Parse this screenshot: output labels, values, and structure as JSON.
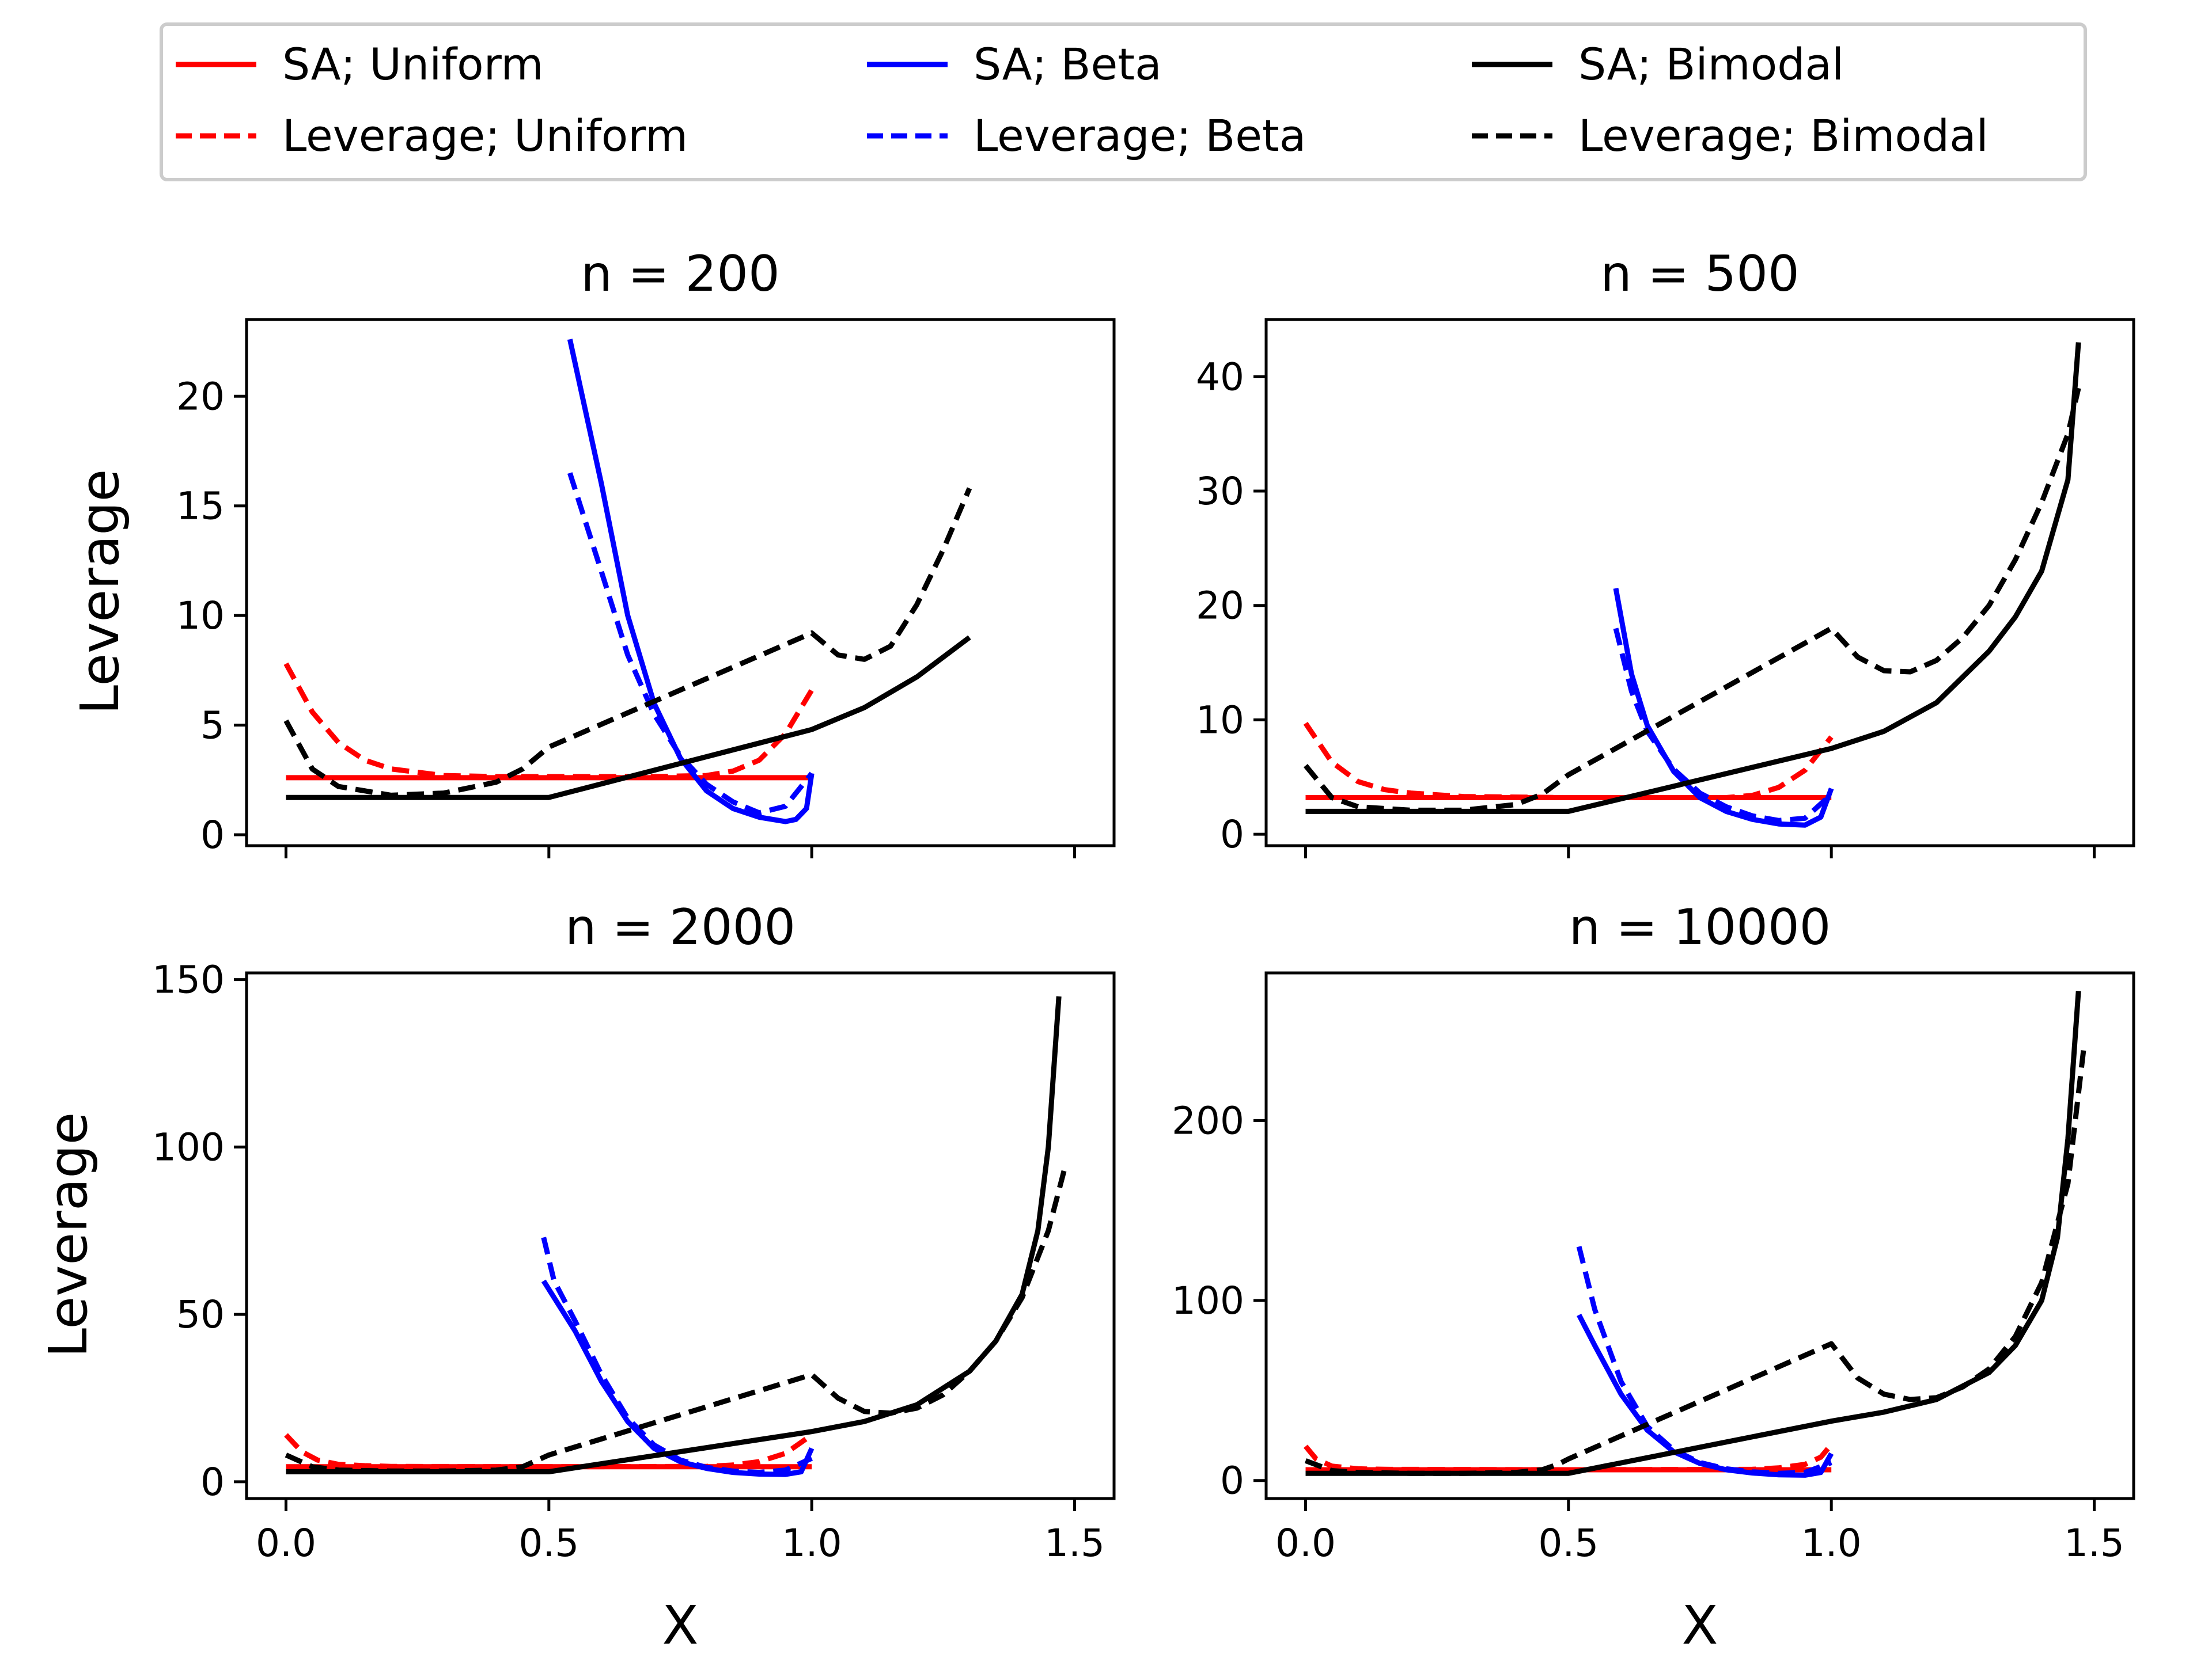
{
  "chart_data": {
    "type": "line",
    "legend": {
      "placement": "top-center",
      "entries": [
        {
          "label": "SA; Uniform",
          "color": "#ff0000",
          "dash": false
        },
        {
          "label": "SA; Beta",
          "color": "#0000ff",
          "dash": false
        },
        {
          "label": "SA; Bimodal",
          "color": "#000000",
          "dash": false
        },
        {
          "label": "Leverage; Uniform",
          "color": "#ff0000",
          "dash": true
        },
        {
          "label": "Leverage; Beta",
          "color": "#0000ff",
          "dash": true
        },
        {
          "label": "Leverage; Bimodal",
          "color": "#000000",
          "dash": true
        }
      ]
    },
    "xlabel": "X",
    "ylabel": "Leverage",
    "panels": [
      {
        "title": "n = 200",
        "xlim": [
          -0.075,
          1.575
        ],
        "ylim": [
          -0.5,
          23.5
        ],
        "xticks": [
          0.0,
          0.5,
          1.0,
          1.5
        ],
        "xtick_labels": [],
        "yticks": [
          0,
          5,
          10,
          15,
          20
        ],
        "ytick_labels": [
          "0",
          "5",
          "10",
          "15",
          "20"
        ],
        "series": [
          {
            "name": "SA; Uniform",
            "color": "#ff0000",
            "dash": false,
            "x": [
              0.0,
              1.0
            ],
            "y": [
              2.6,
              2.6
            ]
          },
          {
            "name": "Leverage; Uniform",
            "color": "#ff0000",
            "dash": true,
            "x": [
              0.0,
              0.05,
              0.1,
              0.15,
              0.2,
              0.3,
              0.4,
              0.5,
              0.6,
              0.7,
              0.8,
              0.85,
              0.9,
              0.95,
              1.0
            ],
            "y": [
              7.8,
              5.6,
              4.2,
              3.4,
              3.0,
              2.7,
              2.65,
              2.65,
              2.65,
              2.65,
              2.7,
              2.9,
              3.4,
              4.6,
              6.6
            ]
          },
          {
            "name": "SA; Beta",
            "color": "#0000ff",
            "dash": false,
            "x": [
              0.54,
              0.6,
              0.65,
              0.7,
              0.75,
              0.8,
              0.85,
              0.9,
              0.95,
              0.97,
              0.99,
              1.0
            ],
            "y": [
              22.6,
              16.0,
              10.0,
              6.0,
              3.5,
              2.0,
              1.2,
              0.8,
              0.6,
              0.7,
              1.2,
              2.8
            ]
          },
          {
            "name": "Leverage; Beta",
            "color": "#0000ff",
            "dash": true,
            "x": [
              0.54,
              0.6,
              0.65,
              0.7,
              0.75,
              0.8,
              0.85,
              0.9,
              0.95,
              1.0
            ],
            "y": [
              16.5,
              12.0,
              8.2,
              5.5,
              3.6,
              2.3,
              1.5,
              1.0,
              1.3,
              2.8
            ]
          },
          {
            "name": "SA; Bimodal",
            "color": "#000000",
            "dash": false,
            "x": [
              0.0,
              0.5,
              1.0,
              1.1,
              1.2,
              1.3
            ],
            "y": [
              1.7,
              1.7,
              4.8,
              5.8,
              7.2,
              9.0
            ]
          },
          {
            "name": "Leverage; Bimodal",
            "color": "#000000",
            "dash": true,
            "x": [
              0.0,
              0.05,
              0.1,
              0.2,
              0.3,
              0.4,
              0.45,
              0.5,
              1.0,
              1.05,
              1.1,
              1.15,
              1.2,
              1.25,
              1.3
            ],
            "y": [
              5.2,
              3.0,
              2.2,
              1.8,
              1.9,
              2.4,
              3.0,
              4.0,
              9.2,
              8.2,
              8.0,
              8.6,
              10.5,
              13.0,
              15.8
            ]
          }
        ]
      },
      {
        "title": "n = 500",
        "xlim": [
          -0.075,
          1.575
        ],
        "ylim": [
          -1.0,
          45.0
        ],
        "xticks": [
          0.0,
          0.5,
          1.0,
          1.5
        ],
        "xtick_labels": [],
        "yticks": [
          0,
          10,
          20,
          30,
          40
        ],
        "ytick_labels": [
          "0",
          "10",
          "20",
          "30",
          "40"
        ],
        "series": [
          {
            "name": "SA; Uniform",
            "color": "#ff0000",
            "dash": false,
            "x": [
              0.0,
              1.0
            ],
            "y": [
              3.2,
              3.2
            ]
          },
          {
            "name": "Leverage; Uniform",
            "color": "#ff0000",
            "dash": true,
            "x": [
              0.0,
              0.05,
              0.1,
              0.15,
              0.2,
              0.3,
              0.5,
              0.7,
              0.8,
              0.85,
              0.9,
              0.95,
              1.0
            ],
            "y": [
              9.7,
              6.3,
              4.6,
              3.9,
              3.6,
              3.3,
              3.2,
              3.2,
              3.2,
              3.4,
              4.1,
              5.6,
              8.5
            ]
          },
          {
            "name": "SA; Beta",
            "color": "#0000ff",
            "dash": false,
            "x": [
              0.59,
              0.62,
              0.65,
              0.7,
              0.75,
              0.8,
              0.85,
              0.9,
              0.95,
              0.98,
              1.0
            ],
            "y": [
              21.5,
              14.0,
              9.5,
              5.5,
              3.2,
              2.0,
              1.3,
              0.9,
              0.8,
              1.5,
              4.0
            ]
          },
          {
            "name": "Leverage; Beta",
            "color": "#0000ff",
            "dash": true,
            "x": [
              0.59,
              0.62,
              0.65,
              0.7,
              0.75,
              0.8,
              0.85,
              0.9,
              0.95,
              1.0
            ],
            "y": [
              18.0,
              12.5,
              9.0,
              5.7,
              3.6,
              2.4,
              1.6,
              1.2,
              1.4,
              3.5
            ]
          },
          {
            "name": "SA; Bimodal",
            "color": "#000000",
            "dash": false,
            "x": [
              0.0,
              0.5,
              1.0,
              1.1,
              1.2,
              1.3,
              1.35,
              1.4,
              1.45,
              1.47
            ],
            "y": [
              2.0,
              2.0,
              7.5,
              9.0,
              11.5,
              16.0,
              19.0,
              23.0,
              31.0,
              43.0
            ]
          },
          {
            "name": "Leverage; Bimodal",
            "color": "#000000",
            "dash": true,
            "x": [
              0.0,
              0.05,
              0.1,
              0.2,
              0.3,
              0.4,
              0.45,
              0.5,
              1.0,
              1.05,
              1.1,
              1.15,
              1.2,
              1.25,
              1.3,
              1.35,
              1.4,
              1.45,
              1.47
            ],
            "y": [
              6.0,
              3.2,
              2.4,
              2.1,
              2.1,
              2.6,
              3.5,
              5.2,
              18.0,
              15.5,
              14.3,
              14.2,
              15.2,
              17.2,
              20.0,
              24.0,
              29.0,
              35.0,
              39.0
            ]
          }
        ]
      },
      {
        "title": "n = 2000",
        "xlim": [
          -0.075,
          1.575
        ],
        "ylim": [
          -5.0,
          152.0
        ],
        "xticks": [
          0.0,
          0.5,
          1.0,
          1.5
        ],
        "xtick_labels": [
          "0.0",
          "0.5",
          "1.0",
          "1.5"
        ],
        "yticks": [
          0,
          50,
          100,
          150
        ],
        "ytick_labels": [
          "0",
          "50",
          "100",
          "150"
        ],
        "series": [
          {
            "name": "SA; Uniform",
            "color": "#ff0000",
            "dash": false,
            "x": [
              0.0,
              1.0
            ],
            "y": [
              4.5,
              4.5
            ]
          },
          {
            "name": "Leverage; Uniform",
            "color": "#ff0000",
            "dash": true,
            "x": [
              0.0,
              0.03,
              0.06,
              0.1,
              0.15,
              0.2,
              0.5,
              0.8,
              0.85,
              0.9,
              0.95,
              1.0
            ],
            "y": [
              14.0,
              9.0,
              6.5,
              5.2,
              4.8,
              4.6,
              4.5,
              4.6,
              5.0,
              6.0,
              8.5,
              14.0
            ]
          },
          {
            "name": "SA; Beta",
            "color": "#0000ff",
            "dash": false,
            "x": [
              0.49,
              0.55,
              0.6,
              0.65,
              0.7,
              0.75,
              0.8,
              0.85,
              0.9,
              0.95,
              0.98,
              1.0
            ],
            "y": [
              60.0,
              45.0,
              30.0,
              18.0,
              10.0,
              6.0,
              4.0,
              2.8,
              2.3,
              2.2,
              3.0,
              10.0
            ]
          },
          {
            "name": "Leverage; Beta",
            "color": "#0000ff",
            "dash": true,
            "x": [
              0.49,
              0.51,
              0.55,
              0.6,
              0.65,
              0.7,
              0.75,
              0.8,
              0.85,
              0.9,
              0.95,
              1.0
            ],
            "y": [
              73.0,
              60.0,
              48.0,
              32.0,
              19.0,
              11.0,
              6.5,
              4.3,
              3.2,
              2.8,
              3.5,
              7.0
            ]
          },
          {
            "name": "SA; Bimodal",
            "color": "#000000",
            "dash": false,
            "x": [
              0.0,
              0.5,
              1.0,
              1.1,
              1.2,
              1.3,
              1.35,
              1.4,
              1.43,
              1.45,
              1.47
            ],
            "y": [
              3.0,
              3.0,
              15.0,
              18.0,
              23.0,
              33.0,
              42.0,
              56.0,
              75.0,
              100.0,
              145.0
            ]
          },
          {
            "name": "Leverage; Bimodal",
            "color": "#000000",
            "dash": true,
            "x": [
              0.0,
              0.05,
              0.1,
              0.2,
              0.3,
              0.4,
              0.45,
              0.5,
              1.0,
              1.05,
              1.1,
              1.15,
              1.2,
              1.25,
              1.3,
              1.35,
              1.4,
              1.45,
              1.48
            ],
            "y": [
              8.0,
              4.5,
              3.5,
              3.2,
              3.2,
              3.5,
              4.5,
              8.0,
              32.0,
              25.0,
              21.0,
              20.5,
              22.0,
              26.0,
              33.0,
              42.0,
              55.0,
              75.0,
              93.0
            ]
          }
        ]
      },
      {
        "title": "n = 10000",
        "xlim": [
          -0.075,
          1.575
        ],
        "ylim": [
          -10.0,
          282.0
        ],
        "xticks": [
          0.0,
          0.5,
          1.0,
          1.5
        ],
        "xtick_labels": [
          "0.0",
          "0.5",
          "1.0",
          "1.5"
        ],
        "yticks": [
          0,
          100,
          200
        ],
        "ytick_labels": [
          "0",
          "100",
          "200"
        ],
        "series": [
          {
            "name": "SA; Uniform",
            "color": "#ff0000",
            "dash": false,
            "x": [
              0.0,
              1.0
            ],
            "y": [
              6.0,
              6.0
            ]
          },
          {
            "name": "Leverage; Uniform",
            "color": "#ff0000",
            "dash": true,
            "x": [
              0.0,
              0.02,
              0.05,
              0.1,
              0.15,
              0.5,
              0.85,
              0.9,
              0.95,
              0.98,
              1.0
            ],
            "y": [
              19.0,
              12.0,
              8.0,
              6.5,
              6.2,
              6.0,
              6.2,
              7.0,
              9.0,
              13.0,
              20.0
            ]
          },
          {
            "name": "SA; Beta",
            "color": "#0000ff",
            "dash": false,
            "x": [
              0.52,
              0.55,
              0.6,
              0.65,
              0.7,
              0.75,
              0.8,
              0.85,
              0.9,
              0.95,
              0.98,
              1.0
            ],
            "y": [
              92.0,
              75.0,
              48.0,
              28.0,
              16.0,
              9.5,
              6.0,
              4.2,
              3.2,
              3.0,
              4.5,
              15.0
            ]
          },
          {
            "name": "Leverage; Beta",
            "color": "#0000ff",
            "dash": true,
            "x": [
              0.52,
              0.55,
              0.6,
              0.65,
              0.7,
              0.75,
              0.8,
              0.85,
              0.9,
              0.95,
              1.0
            ],
            "y": [
              130.0,
              95.0,
              55.0,
              30.0,
              17.0,
              10.0,
              6.5,
              4.8,
              4.0,
              4.5,
              10.0
            ]
          },
          {
            "name": "SA; Bimodal",
            "color": "#000000",
            "dash": false,
            "x": [
              0.0,
              0.5,
              1.0,
              1.1,
              1.2,
              1.3,
              1.35,
              1.4,
              1.43,
              1.45,
              1.47
            ],
            "y": [
              4.0,
              4.0,
              33.0,
              38.0,
              45.0,
              60.0,
              75.0,
              100.0,
              135.0,
              190.0,
              272.0
            ]
          },
          {
            "name": "Leverage; Bimodal",
            "color": "#000000",
            "dash": true,
            "x": [
              0.0,
              0.05,
              0.1,
              0.2,
              0.3,
              0.4,
              0.45,
              0.48,
              0.5,
              1.0,
              1.05,
              1.1,
              1.15,
              1.2,
              1.25,
              1.3,
              1.35,
              1.4,
              1.45,
              1.48
            ],
            "y": [
              11.0,
              5.5,
              4.5,
              4.0,
              4.0,
              4.5,
              6.0,
              9.0,
              12.0,
              76.0,
              57.0,
              48.0,
              45.0,
              46.0,
              52.0,
              62.0,
              80.0,
              110.0,
              165.0,
              240.0
            ]
          }
        ]
      }
    ]
  }
}
